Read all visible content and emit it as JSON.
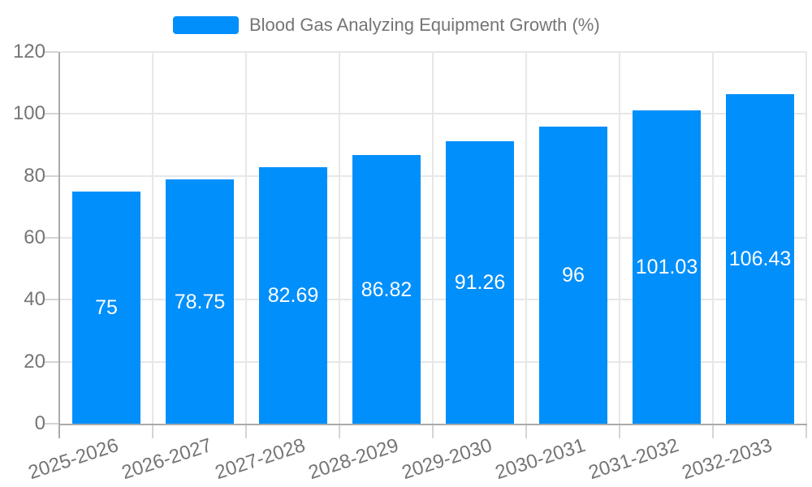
{
  "legend": {
    "label": "Blood Gas Analyzing Equipment Growth (%)",
    "marker_color": "#008FFB",
    "position": "top"
  },
  "chart_data": {
    "type": "bar",
    "title": "",
    "xlabel": "",
    "ylabel": "",
    "categories": [
      "2025-2026",
      "2026-2027",
      "2027-2028",
      "2028-2029",
      "2029-2030",
      "2030-2031",
      "2031-2032",
      "2032-2033"
    ],
    "series": [
      {
        "name": "Blood Gas Analyzing Equipment Growth (%)",
        "values": [
          75,
          78.75,
          82.69,
          86.82,
          91.26,
          96,
          101.03,
          106.43
        ],
        "color": "#008FFB"
      }
    ],
    "data_labels": [
      "75",
      "78.75",
      "82.69",
      "86.82",
      "91.26",
      "96",
      "101.03",
      "106.43"
    ],
    "data_label_position": "inside-center",
    "ylim": [
      0,
      120
    ],
    "yticks": [
      0,
      20,
      40,
      60,
      80,
      100,
      120
    ],
    "grid": true,
    "x_label_rotation_deg": -18,
    "legend_position": "top"
  },
  "style": {
    "bar_color": "#008FFB",
    "data_label_color": "#ffffff",
    "axis_label_color": "#757575",
    "grid_color": "#e7e7e7",
    "tick_color": "#d4d4d4",
    "axis_line_color": "#aaaaaa",
    "background_color": "#ffffff"
  }
}
